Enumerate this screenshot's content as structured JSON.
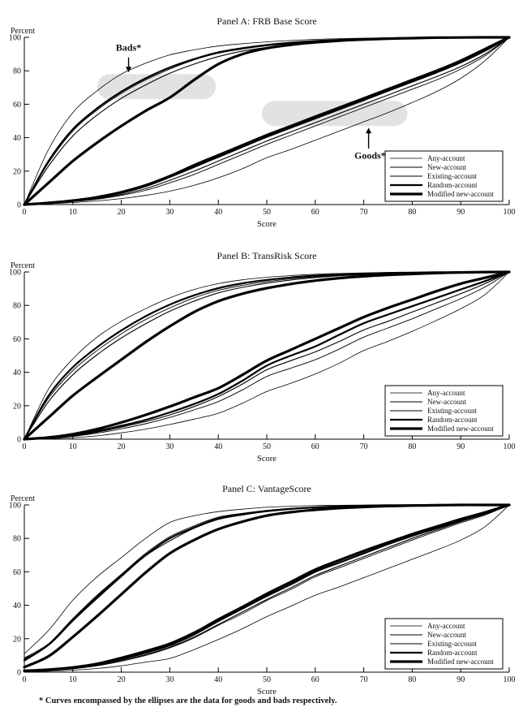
{
  "figure": {
    "footnote": "* Curves encompassed by the ellipses are the data for goods and bads respectively.",
    "colors": {
      "line": "#000000",
      "text": "#111111",
      "highlight": "#e2e2e2",
      "background": "#ffffff",
      "legend_background": "#ffffff"
    }
  },
  "chart_data": [
    {
      "type": "line",
      "title": "Panel A: FRB Base Score",
      "xlabel": "Score",
      "ylabel": "Percent",
      "xlim": [
        0,
        100
      ],
      "ylim": [
        0,
        100
      ],
      "xticks": [
        0,
        10,
        20,
        30,
        40,
        50,
        60,
        70,
        80,
        90,
        100
      ],
      "yticks": [
        0,
        20,
        40,
        60,
        80,
        100
      ],
      "grid": false,
      "legend": {
        "position": "lower right",
        "entries": [
          "Any-account",
          "New-account",
          "Existing-account",
          "Random-account",
          "Modified new-account"
        ]
      },
      "x": [
        0,
        5,
        10,
        15,
        20,
        25,
        30,
        35,
        40,
        45,
        50,
        55,
        60,
        65,
        70,
        75,
        80,
        85,
        90,
        95,
        100
      ],
      "series": [
        {
          "name": "Any-account",
          "group": "bads",
          "width": 0.8,
          "values": [
            0,
            33,
            55,
            68,
            78,
            84.5,
            89.5,
            92.5,
            94.8,
            96.2,
            97.3,
            98.1,
            98.8,
            99.2,
            99.5,
            99.7,
            99.8,
            99.9,
            100,
            100,
            100
          ]
        },
        {
          "name": "New-account",
          "group": "bads",
          "width": 0.9,
          "values": [
            0,
            25,
            44,
            56.5,
            66.5,
            74.5,
            81,
            86.5,
            90.5,
            93,
            95,
            96.4,
            97.5,
            98.3,
            98.9,
            99.3,
            99.6,
            99.8,
            99.9,
            100,
            100
          ]
        },
        {
          "name": "Existing-account",
          "group": "bads",
          "width": 1.1,
          "values": [
            0,
            23,
            41,
            53.5,
            63.5,
            71.5,
            78.5,
            84,
            88.5,
            91.8,
            94,
            95.7,
            97,
            98,
            98.6,
            99.1,
            99.5,
            99.7,
            99.9,
            100,
            100
          ]
        },
        {
          "name": "Random-account",
          "group": "bads",
          "width": 2.2,
          "values": [
            0,
            26,
            45,
            57.5,
            67.5,
            75.5,
            82,
            87,
            91,
            93.5,
            95.4,
            96.8,
            97.8,
            98.5,
            99,
            99.4,
            99.7,
            99.8,
            99.9,
            100,
            100
          ]
        },
        {
          "name": "Modified new-account",
          "group": "bads",
          "width": 3.2,
          "values": [
            0,
            13,
            26,
            37,
            47,
            56,
            64,
            74.5,
            84,
            90,
            93.5,
            95.6,
            97,
            98,
            98.7,
            99.2,
            99.5,
            99.8,
            99.9,
            100,
            100
          ]
        },
        {
          "name": "Any-account",
          "group": "goods",
          "width": 0.8,
          "values": [
            0,
            0.5,
            1.2,
            2.2,
            3.6,
            5.5,
            8,
            11.5,
            16,
            21.5,
            28,
            33,
            38.5,
            44,
            49.5,
            55,
            61,
            67.5,
            75.5,
            86,
            100
          ]
        },
        {
          "name": "New-account",
          "group": "goods",
          "width": 0.9,
          "values": [
            0,
            0.8,
            1.8,
            3.2,
            5.5,
            8.5,
            13,
            18,
            24,
            30,
            36,
            41.5,
            47,
            52.5,
            58,
            63.5,
            69,
            74.5,
            81,
            89,
            100
          ]
        },
        {
          "name": "Existing-account",
          "group": "goods",
          "width": 1.1,
          "values": [
            0,
            0.9,
            2,
            3.6,
            6,
            9.5,
            14.5,
            20,
            26,
            32,
            38,
            43.5,
            49,
            54.5,
            60,
            65.5,
            71,
            76.5,
            82.5,
            90,
            100
          ]
        },
        {
          "name": "Random-account",
          "group": "goods",
          "width": 2.2,
          "values": [
            0,
            1,
            2.3,
            4.2,
            7,
            11,
            16.5,
            22.5,
            28.5,
            34.5,
            40.5,
            46,
            51.5,
            57,
            62.5,
            68,
            73.5,
            79,
            85,
            92,
            100
          ]
        },
        {
          "name": "Modified new-account",
          "group": "goods",
          "width": 3.2,
          "values": [
            0,
            1,
            2.4,
            4.4,
            7.4,
            11.5,
            17,
            23.5,
            29.5,
            35.5,
            41.5,
            47,
            52.5,
            58,
            63.5,
            69,
            74.5,
            80,
            86,
            93,
            100
          ]
        }
      ],
      "highlight_capsules": [
        {
          "label": "bads-ellipse",
          "x": [
            15,
            39.5
          ],
          "y": [
            63,
            78
          ]
        },
        {
          "label": "goods-ellipse",
          "x": [
            49,
            79
          ],
          "y": [
            47,
            62
          ]
        }
      ],
      "annotations": [
        {
          "text": "Bads*",
          "x": 21.5,
          "label_x": 21.5,
          "label_y": 92,
          "arrow_from": 88,
          "arrow_to": 79,
          "dir": "down"
        },
        {
          "text": "Goods*",
          "x": 71,
          "label_x": 71.3,
          "label_y": 27.5,
          "arrow_from": 33.5,
          "arrow_to": 46,
          "dir": "up"
        }
      ]
    },
    {
      "type": "line",
      "title": "Panel B: TransRisk Score",
      "xlabel": "Score",
      "ylabel": "Percent",
      "xlim": [
        0,
        100
      ],
      "ylim": [
        0,
        100
      ],
      "xticks": [
        0,
        10,
        20,
        30,
        40,
        50,
        60,
        70,
        80,
        90,
        100
      ],
      "yticks": [
        0,
        20,
        40,
        60,
        80,
        100
      ],
      "grid": false,
      "legend": {
        "position": "lower right",
        "entries": [
          "Any-account",
          "New-account",
          "Existing-account",
          "Random-account",
          "Modified new-account"
        ]
      },
      "x": [
        0,
        5,
        10,
        15,
        20,
        25,
        30,
        35,
        40,
        45,
        50,
        55,
        60,
        65,
        70,
        75,
        80,
        85,
        90,
        95,
        100
      ],
      "series": [
        {
          "name": "Any-account",
          "group": "bads",
          "width": 0.8,
          "values": [
            0,
            30,
            48,
            61,
            70.5,
            78,
            84.5,
            89.5,
            93,
            95.3,
            96.8,
            97.8,
            98.6,
            99.1,
            99.4,
            99.7,
            99.8,
            99.9,
            100,
            100,
            100
          ]
        },
        {
          "name": "New-account",
          "group": "bads",
          "width": 0.9,
          "values": [
            0,
            24.5,
            41,
            53,
            63,
            71.5,
            78.5,
            84.5,
            89,
            92,
            94.2,
            95.9,
            97.1,
            98,
            98.7,
            99.1,
            99.5,
            99.7,
            99.9,
            100,
            100
          ]
        },
        {
          "name": "Existing-account",
          "group": "bads",
          "width": 1.1,
          "values": [
            0,
            22.5,
            38.5,
            50.5,
            60.5,
            69,
            76.5,
            82.5,
            87.5,
            90.8,
            93.3,
            95.2,
            96.6,
            97.7,
            98.4,
            99,
            99.4,
            99.6,
            99.8,
            100,
            100
          ]
        },
        {
          "name": "Random-account",
          "group": "bads",
          "width": 2.2,
          "values": [
            0,
            26,
            43,
            55,
            65,
            73.5,
            80.5,
            86,
            90.3,
            93.2,
            95.2,
            96.7,
            97.8,
            98.5,
            99,
            99.4,
            99.6,
            99.8,
            99.9,
            100,
            100
          ]
        },
        {
          "name": "Modified new-account",
          "group": "bads",
          "width": 3.2,
          "values": [
            0,
            13,
            26,
            37,
            47.5,
            58,
            67.5,
            76,
            82.5,
            87,
            90.3,
            92.8,
            94.8,
            96.3,
            97.4,
            98.2,
            98.8,
            99.3,
            99.7,
            99.9,
            100
          ]
        },
        {
          "name": "Any-account",
          "group": "goods",
          "width": 0.8,
          "values": [
            0,
            0.3,
            0.9,
            2,
            3.8,
            6,
            8.8,
            12,
            15.5,
            21.5,
            28.5,
            33.5,
            39,
            45.5,
            53,
            58.5,
            64.5,
            71,
            78,
            86.5,
            100
          ]
        },
        {
          "name": "New-account",
          "group": "goods",
          "width": 0.9,
          "values": [
            0,
            0.6,
            1.7,
            3.6,
            6.2,
            9.2,
            13,
            17.5,
            22.5,
            29.5,
            37.5,
            42.5,
            47.5,
            54,
            61,
            66.5,
            72,
            78,
            84,
            91,
            100
          ]
        },
        {
          "name": "Existing-account",
          "group": "goods",
          "width": 1.1,
          "values": [
            0,
            0.7,
            2,
            4.2,
            7.2,
            10.5,
            14.5,
            19.5,
            25.5,
            33,
            41.5,
            47,
            52.2,
            58.5,
            65.3,
            70.5,
            76,
            81.5,
            87,
            93,
            100
          ]
        },
        {
          "name": "Random-account",
          "group": "goods",
          "width": 2.2,
          "values": [
            0,
            0.8,
            2.3,
            4.8,
            8,
            11.5,
            16,
            21,
            27,
            35,
            44,
            50,
            55.5,
            62.5,
            69.3,
            74.5,
            79.5,
            84.5,
            89.5,
            94.5,
            100
          ]
        },
        {
          "name": "Modified new-account",
          "group": "goods",
          "width": 3.2,
          "values": [
            0,
            1,
            3,
            6,
            10,
            14.5,
            19.5,
            25,
            30.5,
            38.5,
            47,
            53.5,
            60,
            66.5,
            73,
            78.5,
            83.5,
            88.5,
            93,
            96.5,
            100
          ]
        }
      ],
      "highlight_capsules": [],
      "annotations": []
    },
    {
      "type": "line",
      "title": "Panel C: VantageScore",
      "xlabel": "Score",
      "ylabel": "Percent",
      "xlim": [
        0,
        100
      ],
      "ylim": [
        0,
        100
      ],
      "xticks": [
        0,
        10,
        20,
        30,
        40,
        50,
        60,
        70,
        80,
        90,
        100
      ],
      "yticks": [
        0,
        20,
        40,
        60,
        80,
        100
      ],
      "grid": false,
      "legend": {
        "position": "lower right",
        "entries": [
          "Any-account",
          "New-account",
          "Existing-account",
          "Random-account",
          "Modified new-account"
        ]
      },
      "x": [
        0,
        5,
        10,
        15,
        20,
        25,
        30,
        35,
        40,
        45,
        50,
        55,
        60,
        65,
        70,
        75,
        80,
        85,
        90,
        95,
        100
      ],
      "series": [
        {
          "name": "Any-account",
          "group": "bads",
          "width": 0.8,
          "values": [
            11,
            25,
            43,
            57,
            68.5,
            80,
            89.5,
            93.5,
            96,
            97.5,
            98.6,
            99.2,
            99.6,
            99.8,
            99.9,
            100,
            100,
            100,
            100,
            100,
            100
          ]
        },
        {
          "name": "New-account",
          "group": "bads",
          "width": 0.9,
          "values": [
            8.5,
            17,
            32,
            46,
            58.5,
            71,
            81,
            87.5,
            92.7,
            95,
            96.7,
            97.9,
            98.7,
            99.2,
            99.6,
            99.8,
            99.9,
            100,
            100,
            100,
            100
          ]
        },
        {
          "name": "Existing-account",
          "group": "bads",
          "width": 1.1,
          "values": [
            8,
            16,
            30.5,
            44,
            57,
            69.5,
            78.5,
            86,
            91.3,
            94,
            96,
            97.4,
            98.3,
            99,
            99.4,
            99.7,
            99.9,
            100,
            100,
            100,
            100
          ]
        },
        {
          "name": "Random-account",
          "group": "bads",
          "width": 2.2,
          "values": [
            7,
            16.5,
            31.5,
            45,
            58,
            70,
            80,
            86.5,
            92,
            94.5,
            96.4,
            97.7,
            98.5,
            99.1,
            99.5,
            99.8,
            99.9,
            100,
            100,
            100,
            100
          ]
        },
        {
          "name": "Modified new-account",
          "group": "bads",
          "width": 3.2,
          "values": [
            3,
            9.5,
            21,
            33.5,
            46.5,
            59.5,
            71,
            79,
            85.5,
            90,
            93.6,
            95.7,
            97.1,
            98.1,
            98.8,
            99.3,
            99.6,
            99.8,
            100,
            100,
            100
          ]
        },
        {
          "name": "Any-account",
          "group": "goods",
          "width": 0.8,
          "values": [
            0.3,
            0.6,
            1.2,
            2.2,
            3.8,
            6,
            8.2,
            13.5,
            19.5,
            26,
            33.2,
            39.5,
            46,
            51,
            56.5,
            62,
            67.5,
            73,
            79,
            87,
            100
          ]
        },
        {
          "name": "New-account",
          "group": "goods",
          "width": 0.9,
          "values": [
            0.5,
            1,
            2,
            3.8,
            6.5,
            10,
            14.5,
            20.5,
            28,
            35,
            42.8,
            49.5,
            57,
            62.5,
            68,
            73.5,
            79,
            84.2,
            89.3,
            94,
            100
          ]
        },
        {
          "name": "Existing-account",
          "group": "goods",
          "width": 1.1,
          "values": [
            0.5,
            1.1,
            2.2,
            4,
            7,
            10.5,
            15,
            21,
            28.5,
            36,
            43.5,
            50.5,
            57.8,
            63.5,
            69,
            74.5,
            80,
            85,
            90,
            94.5,
            100
          ]
        },
        {
          "name": "Random-account",
          "group": "goods",
          "width": 2.2,
          "values": [
            0.7,
            1.3,
            2.5,
            4.5,
            7.8,
            11.5,
            16,
            22.5,
            30.5,
            38,
            45.5,
            52.5,
            60,
            65.5,
            71,
            76.5,
            81.5,
            86,
            90.5,
            95,
            100
          ]
        },
        {
          "name": "Modified new-account",
          "group": "goods",
          "width": 3.2,
          "values": [
            0.8,
            1.5,
            2.8,
            5,
            8.5,
            12.5,
            17,
            23.5,
            31.5,
            39,
            46.8,
            54,
            61.3,
            67,
            72.5,
            77.5,
            82.5,
            87,
            91.5,
            95.5,
            100
          ]
        }
      ],
      "highlight_capsules": [],
      "annotations": []
    }
  ]
}
